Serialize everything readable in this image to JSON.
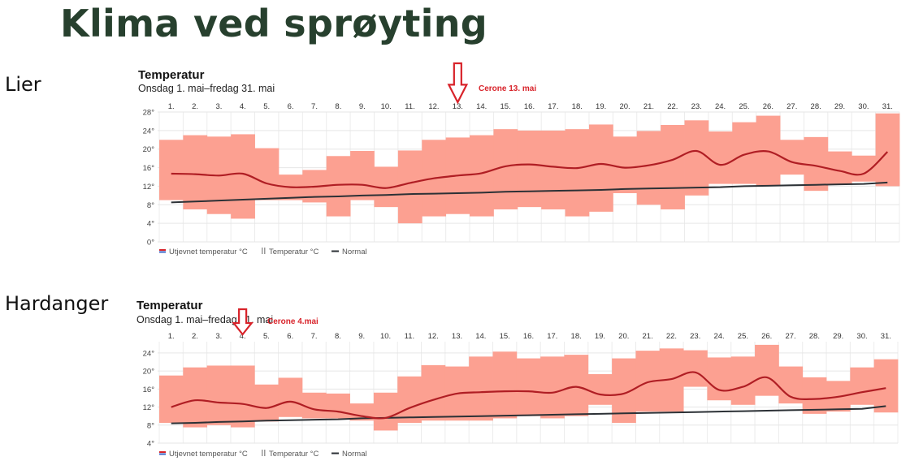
{
  "page": {
    "title": "Klima ved sprøyting"
  },
  "chart_data": [
    {
      "type": "bar",
      "region": "Lier",
      "title": "Temperatur",
      "subtitle": "Onsdag 1. mai–fredag 31. mai",
      "categories": [
        "1.",
        "2.",
        "3.",
        "4.",
        "5.",
        "6.",
        "7.",
        "8.",
        "9.",
        "10.",
        "11.",
        "12.",
        "13.",
        "14.",
        "15.",
        "16.",
        "17.",
        "18.",
        "19.",
        "20.",
        "21.",
        "22.",
        "23.",
        "24.",
        "25.",
        "26.",
        "27.",
        "28.",
        "29.",
        "30.",
        "31."
      ],
      "ylim": [
        0,
        28
      ],
      "yticks": [
        "0°",
        "4°",
        "8°",
        "12°",
        "16°",
        "20°",
        "24°",
        "28°"
      ],
      "series": [
        {
          "name": "Temperatur °C",
          "min": [
            9,
            7,
            6,
            5,
            9,
            9,
            8.5,
            5.5,
            9,
            7.5,
            4,
            5.5,
            6,
            5.5,
            7,
            7.5,
            7,
            5.5,
            6.5,
            10.5,
            8,
            7,
            10,
            12.5,
            12.5,
            12,
            14.5,
            11,
            12.5,
            13,
            12
          ],
          "max": [
            22,
            23,
            22.7,
            23.2,
            20.2,
            14.5,
            15.5,
            18.5,
            19.6,
            16.2,
            19.7,
            22,
            22.5,
            23,
            24.3,
            24,
            24,
            24.3,
            25.3,
            22.7,
            23.9,
            25.2,
            26.2,
            23.8,
            25.8,
            27.2,
            22,
            22.6,
            19.5,
            18.6,
            27.7
          ]
        },
        {
          "name": "Utjevnet temperatur °C",
          "values": [
            14.7,
            14.6,
            14.3,
            14.7,
            12.6,
            11.8,
            11.9,
            12.3,
            12.3,
            11.6,
            12.7,
            13.7,
            14.3,
            14.8,
            16.3,
            16.7,
            16.2,
            15.9,
            16.8,
            16,
            16.5,
            17.7,
            19.6,
            16.6,
            18.8,
            19.5,
            17.2,
            16.4,
            15.3,
            14.7,
            19.4
          ]
        },
        {
          "name": "Normal",
          "values": [
            8.5,
            8.7,
            8.9,
            9.1,
            9.3,
            9.5,
            9.7,
            9.8,
            10,
            10.1,
            10.3,
            10.4,
            10.5,
            10.6,
            10.8,
            10.9,
            11,
            11.1,
            11.2,
            11.4,
            11.5,
            11.6,
            11.7,
            11.8,
            12,
            12.1,
            12.2,
            12.3,
            12.4,
            12.5,
            12.8
          ]
        }
      ],
      "annotation": {
        "label": "Cerone 13. mai",
        "day": 13
      },
      "legend": [
        "Utjevnet temperatur °C",
        "Temperatur °C",
        "Normal"
      ],
      "legend_position": "bottom-left",
      "colors": {
        "band": "#fca091",
        "smoothed": "#b01e24",
        "normal": "#2c3136",
        "annotation": "#d8232a"
      }
    },
    {
      "type": "bar",
      "region": "Hardanger",
      "title": "Temperatur",
      "subtitle": "Onsdag 1. mai–fredag 31. mai",
      "categories": [
        "1.",
        "2.",
        "3.",
        "4.",
        "5.",
        "6.",
        "7.",
        "8.",
        "9.",
        "10.",
        "11.",
        "12.",
        "13.",
        "14.",
        "15.",
        "16.",
        "17.",
        "18.",
        "19.",
        "20.",
        "21.",
        "22.",
        "23.",
        "24.",
        "25.",
        "26.",
        "27.",
        "28.",
        "29.",
        "30.",
        "31."
      ],
      "ylim": [
        4,
        26.5
      ],
      "yticks": [
        "4°",
        "8°",
        "12°",
        "16°",
        "20°",
        "24°"
      ],
      "series": [
        {
          "name": "Temperatur °C",
          "min": [
            8.5,
            7.5,
            8,
            7.5,
            8.8,
            9.8,
            9.5,
            9.5,
            9,
            6.8,
            8.5,
            9,
            9,
            9,
            9.5,
            10,
            9.5,
            10,
            12.5,
            8.5,
            11,
            11,
            16.5,
            13.5,
            12.5,
            14.5,
            12.8,
            10.5,
            11,
            12.5,
            10.8
          ],
          "max": [
            19,
            20.8,
            21.2,
            21.2,
            17,
            18.5,
            15.2,
            15,
            12.8,
            15.2,
            18.8,
            21.3,
            21,
            23.2,
            24.3,
            22.8,
            23.2,
            23.6,
            19.3,
            22.8,
            24.5,
            25,
            24.6,
            23,
            23.2,
            25.8,
            21,
            18.6,
            17.8,
            20.8,
            22.6
          ]
        },
        {
          "name": "Utjevnet temperatur °C",
          "values": [
            12,
            13.5,
            13,
            12.7,
            11.8,
            13.2,
            11.5,
            11,
            10,
            9.6,
            11.8,
            13.6,
            15,
            15.3,
            15.5,
            15.5,
            15.2,
            16.5,
            14.8,
            15,
            17.5,
            18.2,
            19.7,
            15.8,
            16.5,
            18.6,
            14.3,
            13.8,
            14.3,
            15.3,
            16.2
          ]
        },
        {
          "name": "Normal",
          "values": [
            8.4,
            8.5,
            8.7,
            8.8,
            9,
            9.1,
            9.2,
            9.3,
            9.5,
            9.6,
            9.7,
            9.8,
            9.9,
            10,
            10.1,
            10.2,
            10.3,
            10.4,
            10.5,
            10.6,
            10.7,
            10.8,
            10.9,
            11,
            11.1,
            11.2,
            11.3,
            11.4,
            11.5,
            11.6,
            12.2
          ]
        }
      ],
      "annotation": {
        "label": "Cerone 4.mai",
        "day": 4
      },
      "legend": [
        "Utjevnet temperatur °C",
        "Temperatur °C",
        "Normal"
      ],
      "legend_position": "bottom-left",
      "colors": {
        "band": "#fca091",
        "smoothed": "#b01e24",
        "normal": "#2c3136",
        "annotation": "#d8232a"
      }
    }
  ]
}
